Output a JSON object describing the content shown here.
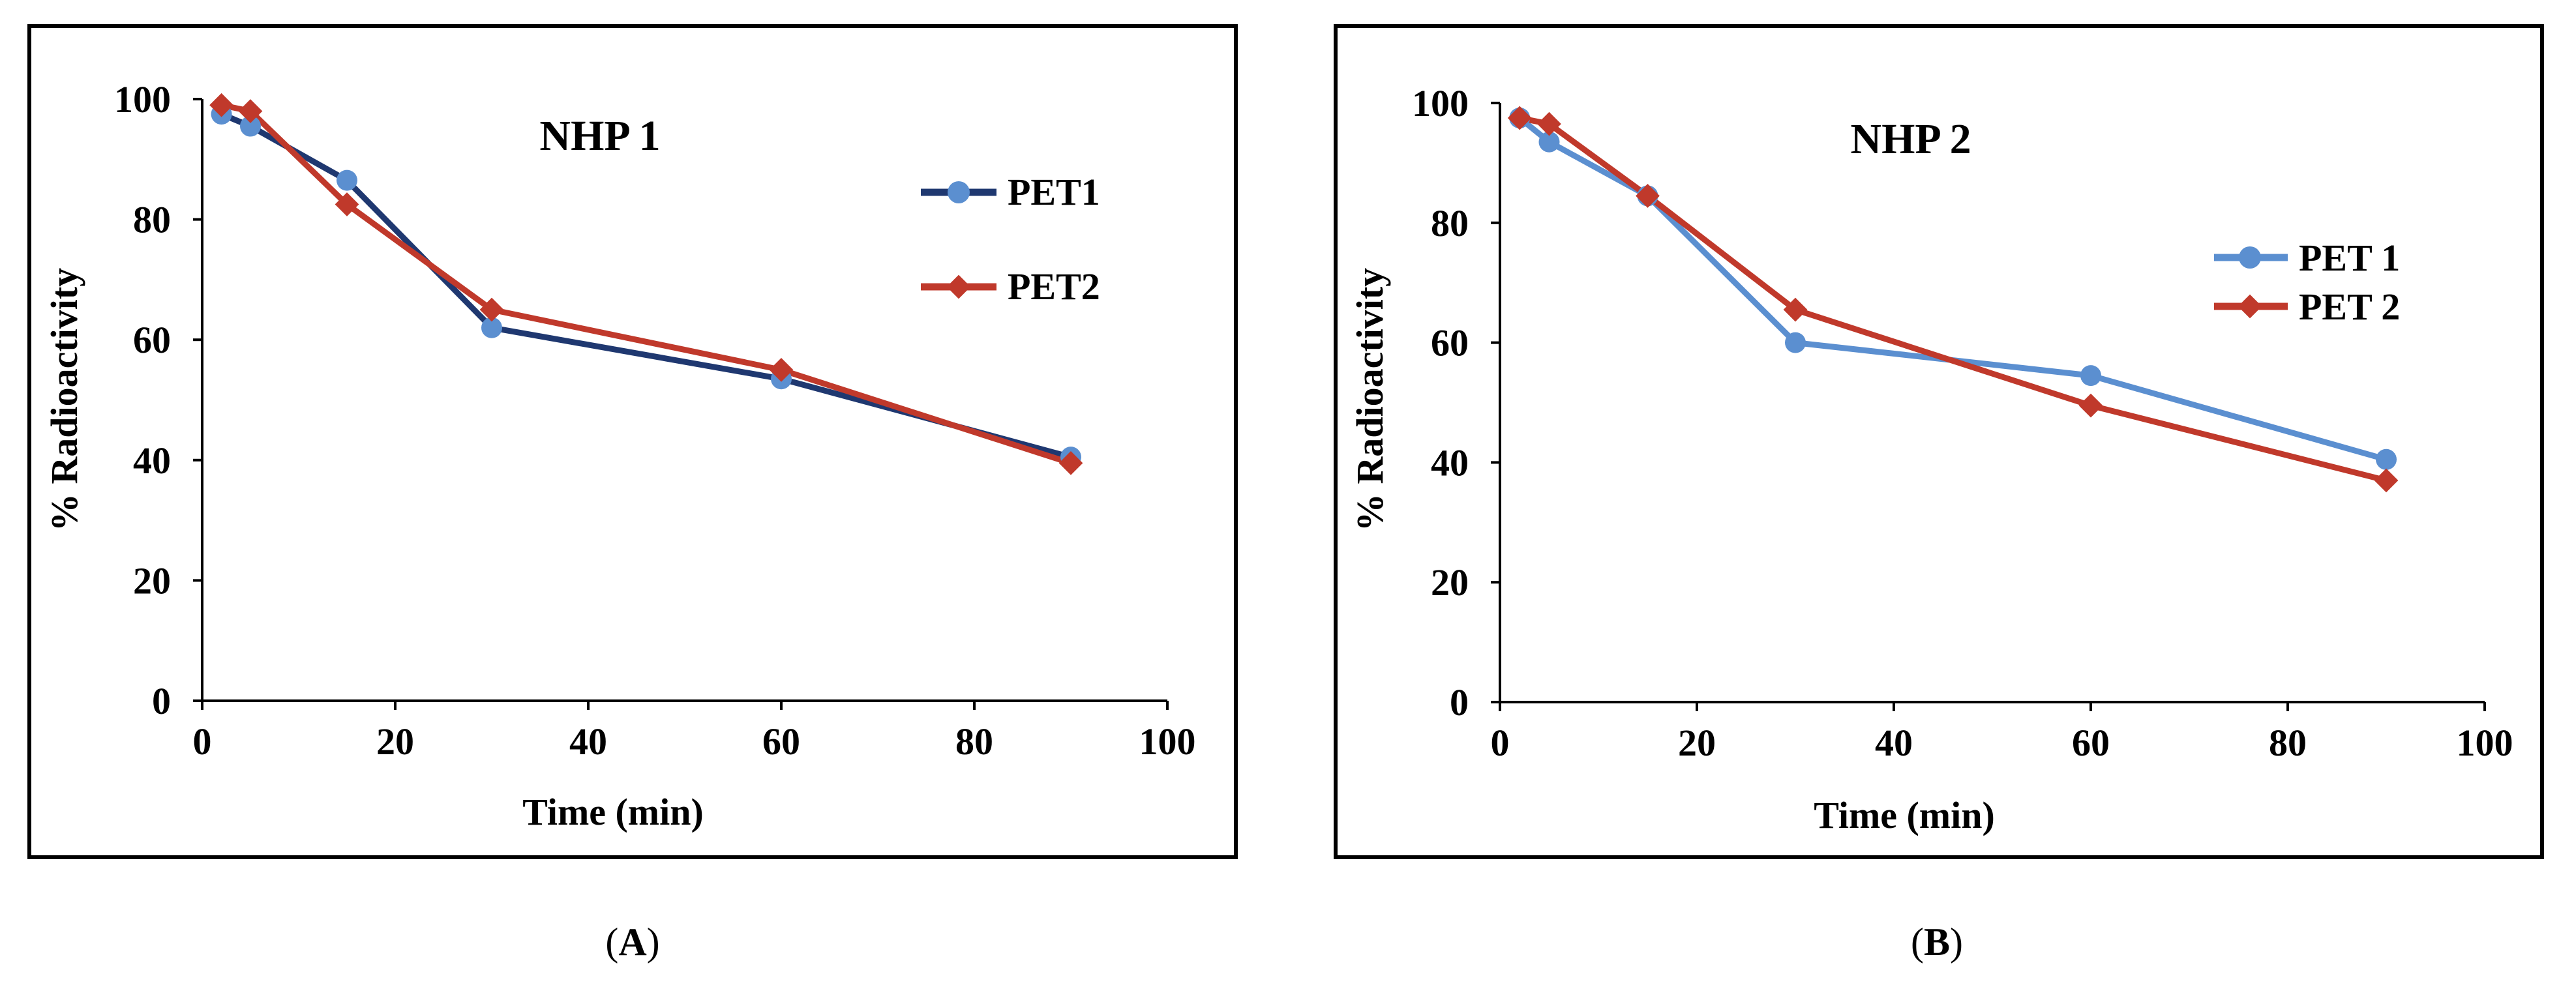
{
  "chart_data": [
    {
      "type": "line",
      "title": "NHP 1",
      "xlabel": "Time (min)",
      "ylabel": "% Radioactivity",
      "xlim": [
        0,
        100
      ],
      "ylim": [
        0,
        100
      ],
      "x_ticks": [
        "0",
        "20",
        "40",
        "60",
        "80",
        "100"
      ],
      "y_ticks": [
        "0",
        "20",
        "40",
        "60",
        "80",
        "100"
      ],
      "grid": false,
      "legend_position": "right",
      "series": [
        {
          "name": "PET1",
          "color": "#1f3870",
          "marker": "circle",
          "x": [
            2,
            5,
            15,
            30,
            60,
            90
          ],
          "y": [
            97.5,
            95.5,
            86.5,
            62,
            53.5,
            40.5
          ]
        },
        {
          "name": "PET2",
          "color": "#c0392b",
          "marker": "diamond",
          "x": [
            2,
            5,
            15,
            30,
            60,
            90
          ],
          "y": [
            99,
            98,
            82.5,
            65,
            55,
            39.5
          ]
        }
      ]
    },
    {
      "type": "line",
      "title": "NHP 2",
      "xlabel": "Time (min)",
      "ylabel": "% Radioactivity",
      "xlim": [
        0,
        100
      ],
      "ylim": [
        0,
        100
      ],
      "x_ticks": [
        "0",
        "20",
        "40",
        "60",
        "80",
        "100"
      ],
      "y_ticks": [
        "0",
        "20",
        "40",
        "60",
        "80",
        "100"
      ],
      "grid": false,
      "legend_position": "right",
      "series": [
        {
          "name": "PET 1",
          "color": "#5b8fd0",
          "marker": "circle",
          "x": [
            2,
            5,
            15,
            30,
            60,
            90
          ],
          "y": [
            97.5,
            93.5,
            84.5,
            60,
            54.5,
            40.5
          ]
        },
        {
          "name": "PET 2",
          "color": "#c0392b",
          "marker": "diamond",
          "x": [
            2,
            5,
            15,
            30,
            60,
            90
          ],
          "y": [
            97.5,
            96.5,
            84.5,
            65.5,
            49.5,
            37
          ]
        }
      ]
    }
  ],
  "panel_labels": [
    "A",
    "B"
  ]
}
